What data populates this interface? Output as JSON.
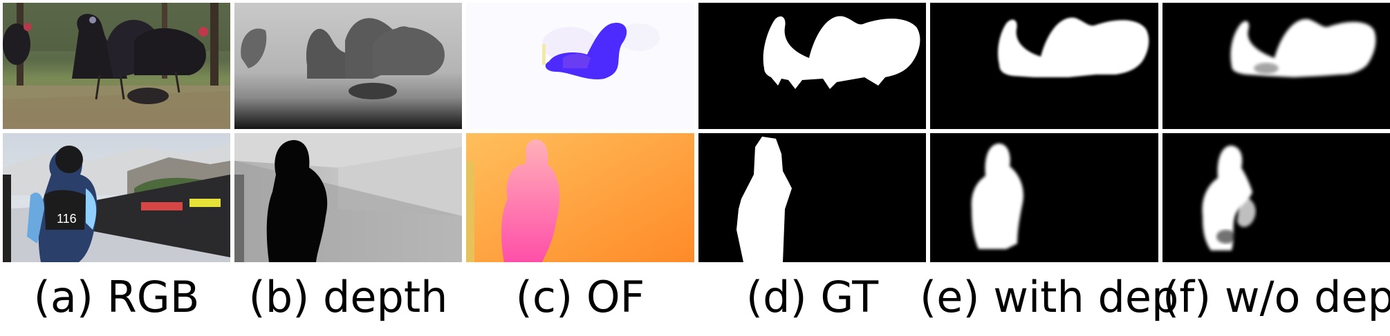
{
  "columns": [
    {
      "id": "rgb",
      "caption": "(a) RGB"
    },
    {
      "id": "depth",
      "caption": "(b) depth"
    },
    {
      "id": "of",
      "caption": "(c) OF"
    },
    {
      "id": "gt",
      "caption": "(d) GT"
    },
    {
      "id": "with",
      "caption": "(e) with dep"
    },
    {
      "id": "wo",
      "caption": "(f) w/o dep"
    }
  ],
  "rows": [
    {
      "id": "turkeys",
      "jersey_number": "116"
    },
    {
      "id": "skier"
    }
  ],
  "colors": {
    "background": "#ffffff",
    "mask_fg": "#ffffff",
    "mask_bg": "#000000",
    "flow_turkey": "#4d2bff",
    "flow_skier_bg": "#ff9f3c",
    "flow_skier_fg": "#ff6fa8"
  }
}
